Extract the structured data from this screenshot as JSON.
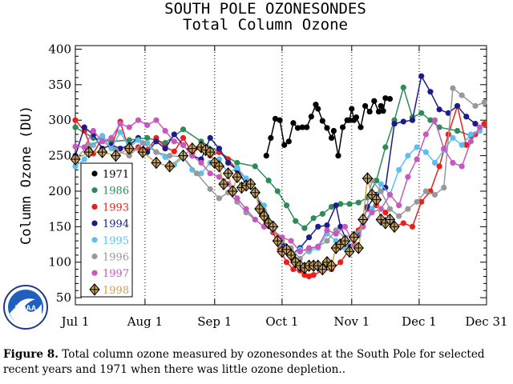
{
  "figure_label": "Figure 8.",
  "caption_text": "Total column ozone measured by ozonesondes at the South Pole for selected recent years and 1971 when there was little ozone depletion..",
  "logo_text": "NOAA",
  "chart_data": {
    "type": "line",
    "title": "SOUTH POLE OZONESONDES",
    "subtitle": "Total Column Ozone",
    "ylabel": "Column Ozone (DU)",
    "xlabel": "",
    "x_unit": "day_of_year",
    "xlim": [
      182,
      365
    ],
    "ylim": [
      40,
      405
    ],
    "x_ticks": [
      {
        "x": 182,
        "label": "Jul 1"
      },
      {
        "x": 213,
        "label": "Aug 1"
      },
      {
        "x": 244,
        "label": "Sep 1"
      },
      {
        "x": 274,
        "label": "Oct 1"
      },
      {
        "x": 305,
        "label": "Nov 1"
      },
      {
        "x": 335,
        "label": "Dec 1"
      },
      {
        "x": 365,
        "label": "Dec 31"
      }
    ],
    "y_ticks": [
      50,
      100,
      150,
      200,
      250,
      300,
      350,
      400
    ],
    "grid": "dotted vertical at month starts",
    "legend_placement": "left",
    "series": [
      {
        "name": "1971",
        "color": "#000000",
        "marker": "dot",
        "x": [
          267,
          269,
          271,
          273,
          275,
          277,
          279,
          281,
          283,
          285,
          287,
          289,
          290,
          292,
          294,
          296,
          297,
          299,
          301,
          303,
          304,
          305,
          306,
          307,
          309,
          311,
          313,
          315,
          317,
          318,
          319,
          320,
          322
        ],
        "y": [
          250,
          275,
          302,
          300,
          265,
          270,
          296,
          289,
          290,
          290,
          305,
          322,
          316,
          299,
          289,
          275,
          285,
          250,
          290,
          300,
          300,
          316,
          300,
          304,
          290,
          320,
          312,
          327,
          312,
          320,
          313,
          331,
          330
        ]
      },
      {
        "name": "1986",
        "color": "#2e8b57",
        "marker": "dot",
        "x": [
          182,
          190,
          198,
          206,
          214,
          222,
          230,
          238,
          246,
          254,
          262,
          268,
          272,
          276,
          280,
          284,
          288,
          292,
          296,
          300,
          304,
          308,
          312,
          316,
          320,
          324,
          328,
          332,
          336,
          340,
          344,
          352,
          358
        ],
        "y": [
          290,
          275,
          270,
          272,
          275,
          268,
          287,
          270,
          255,
          240,
          235,
          215,
          200,
          180,
          158,
          148,
          162,
          168,
          178,
          182,
          182,
          184,
          191,
          215,
          262,
          300,
          346,
          304,
          310,
          300,
          290,
          285,
          278
        ]
      },
      {
        "name": "1993",
        "color": "#e8211d",
        "marker": "dot",
        "x": [
          182,
          186,
          190,
          194,
          198,
          202,
          206,
          210,
          214,
          218,
          222,
          226,
          230,
          234,
          238,
          242,
          246,
          250,
          254,
          258,
          262,
          266,
          270,
          273,
          276,
          279,
          282,
          284,
          286,
          288,
          292,
          296,
          300,
          304,
          308,
          312,
          316,
          320,
          324,
          328,
          332,
          336,
          340,
          344,
          348,
          352,
          356,
          360,
          364
        ],
        "y": [
          300,
          285,
          253,
          275,
          262,
          298,
          255,
          262,
          258,
          275,
          262,
          256,
          275,
          254,
          262,
          250,
          255,
          245,
          230,
          218,
          200,
          172,
          142,
          118,
          100,
          90,
          88,
          82,
          80,
          82,
          88,
          90,
          100,
          118,
          145,
          175,
          180,
          170,
          150,
          155,
          150,
          185,
          200,
          235,
          280,
          320,
          265,
          280,
          295
        ]
      },
      {
        "name": "1994",
        "color": "#1c1b8c",
        "marker": "dot",
        "x": [
          182,
          186,
          190,
          194,
          198,
          202,
          206,
          210,
          214,
          218,
          222,
          226,
          230,
          234,
          238,
          242,
          246,
          250,
          254,
          258,
          262,
          266,
          270,
          274,
          278,
          282,
          286,
          290,
          294,
          298,
          300,
          304,
          308,
          312,
          316,
          320,
          324,
          328,
          332,
          336,
          340,
          344,
          348,
          352,
          356,
          360
        ],
        "y": [
          250,
          290,
          280,
          260,
          265,
          260,
          265,
          275,
          255,
          270,
          260,
          280,
          265,
          250,
          245,
          275,
          260,
          240,
          230,
          210,
          200,
          165,
          148,
          125,
          110,
          120,
          135,
          150,
          152,
          180,
          150,
          122,
          138,
          178,
          195,
          205,
          295,
          298,
          300,
          362,
          340,
          315,
          310,
          320,
          305,
          295
        ]
      },
      {
        "name": "1995",
        "color": "#5bc0f0",
        "marker": "dot",
        "x": [
          182,
          186,
          190,
          194,
          198,
          202,
          206,
          210,
          214,
          218,
          222,
          226,
          230,
          234,
          238,
          242,
          246,
          250,
          254,
          258,
          262,
          266,
          270,
          274,
          278,
          282,
          286,
          290,
          294,
          298,
          302,
          306,
          310,
          314,
          318,
          322,
          326,
          330,
          334,
          338,
          342,
          346,
          350,
          354,
          358,
          362
        ],
        "y": [
          235,
          245,
          265,
          278,
          260,
          283,
          262,
          272,
          268,
          255,
          248,
          237,
          248,
          230,
          225,
          240,
          245,
          225,
          233,
          218,
          194,
          180,
          150,
          120,
          110,
          118,
          115,
          120,
          140,
          130,
          120,
          135,
          150,
          175,
          210,
          195,
          230,
          250,
          262,
          255,
          240,
          258,
          275,
          265,
          280,
          285
        ]
      },
      {
        "name": "1996",
        "color": "#999999",
        "marker": "dot",
        "x": [
          182,
          188,
          194,
          200,
          206,
          212,
          218,
          224,
          230,
          236,
          242,
          246,
          250,
          254,
          258,
          262,
          266,
          270,
          274,
          278,
          282,
          286,
          290,
          294,
          298,
          302,
          306,
          310,
          314,
          318,
          322,
          326,
          330,
          334,
          338,
          342,
          346,
          350,
          354,
          360,
          364
        ],
        "y": [
          245,
          265,
          270,
          258,
          250,
          268,
          255,
          250,
          248,
          225,
          203,
          190,
          198,
          185,
          170,
          160,
          150,
          145,
          130,
          120,
          105,
          118,
          122,
          130,
          145,
          135,
          140,
          150,
          215,
          200,
          175,
          165,
          175,
          185,
          200,
          195,
          205,
          345,
          335,
          320,
          325
        ]
      },
      {
        "name": "1997",
        "color": "#c658c0",
        "marker": "dot",
        "x": [
          182,
          186,
          190,
          194,
          198,
          202,
          206,
          210,
          214,
          218,
          222,
          226,
          230,
          234,
          238,
          242,
          246,
          250,
          254,
          258,
          262,
          266,
          270,
          274,
          278,
          282,
          286,
          290,
          294,
          298,
          302,
          306,
          310,
          314,
          318,
          322,
          326,
          330,
          334,
          338,
          342,
          346,
          350,
          354,
          358,
          362
        ],
        "y": [
          263,
          262,
          285,
          270,
          275,
          295,
          290,
          300,
          293,
          300,
          285,
          270,
          265,
          250,
          240,
          225,
          220,
          210,
          190,
          175,
          160,
          150,
          145,
          135,
          130,
          115,
          120,
          122,
          145,
          140,
          150,
          125,
          150,
          170,
          175,
          195,
          180,
          220,
          245,
          280,
          300,
          260,
          240,
          235,
          270,
          290
        ]
      },
      {
        "name": "1998",
        "color": "#c8a05a",
        "marker": "diamond",
        "x": [
          182,
          188,
          194,
          200,
          206,
          212,
          218,
          224,
          230,
          234,
          238,
          240,
          242,
          244,
          246,
          248,
          250,
          252,
          254,
          256,
          258,
          260,
          262,
          264,
          266,
          268,
          270,
          272,
          274,
          276,
          278,
          280,
          282,
          284,
          286,
          288,
          290,
          292,
          294,
          296,
          298,
          300,
          302,
          304,
          306,
          308,
          310,
          312,
          314,
          316,
          318,
          320,
          322,
          324
        ],
        "y": [
          245,
          255,
          255,
          250,
          260,
          255,
          240,
          235,
          250,
          260,
          262,
          258,
          255,
          240,
          235,
          210,
          225,
          200,
          220,
          205,
          208,
          210,
          198,
          175,
          165,
          155,
          150,
          130,
          115,
          118,
          110,
          100,
          95,
          92,
          95,
          95,
          95,
          90,
          100,
          95,
          120,
          125,
          130,
          115,
          135,
          120,
          160,
          218,
          195,
          188,
          160,
          155,
          160,
          150
        ]
      }
    ]
  }
}
